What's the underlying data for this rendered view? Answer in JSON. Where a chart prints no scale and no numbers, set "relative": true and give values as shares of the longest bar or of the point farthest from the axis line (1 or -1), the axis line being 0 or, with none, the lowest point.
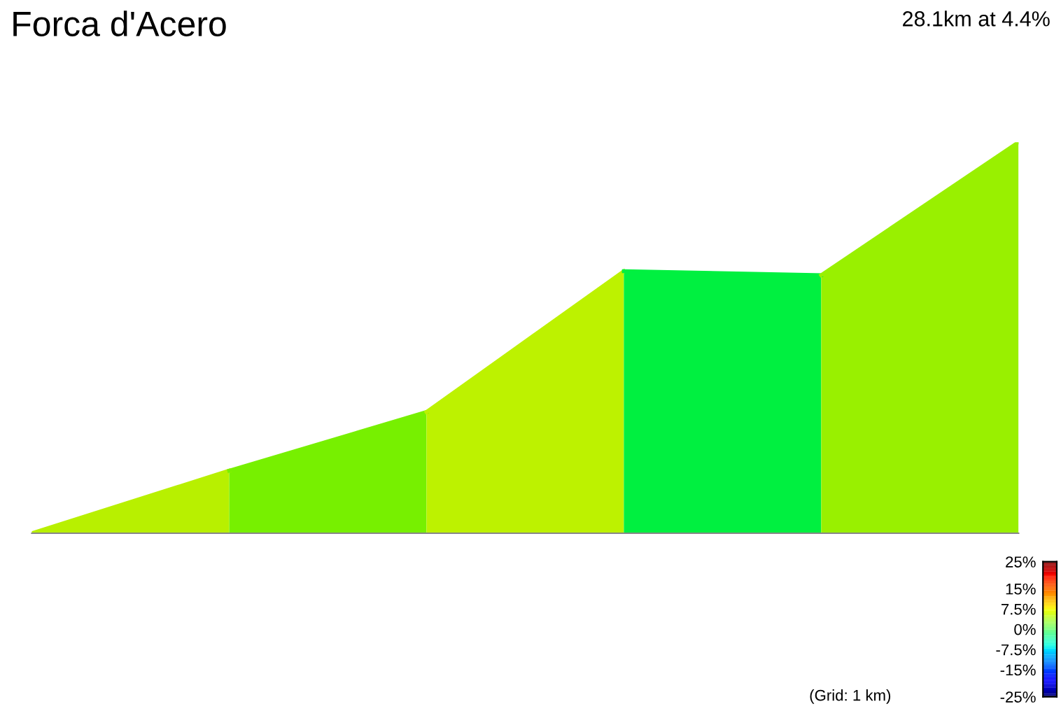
{
  "chart_data": {
    "type": "area",
    "title": "Forca d'Acero",
    "subtitle": "28.1km at 4.4%",
    "relative": true,
    "categories": [
      null,
      null,
      null,
      null,
      null,
      null
    ],
    "series": [
      {
        "color": "#b8f000",
        "values": [
          0,
          0.16,
          null,
          null,
          null,
          null
        ]
      },
      {
        "color": "#77f000",
        "values": [
          null,
          0.16,
          0.31,
          null,
          null,
          null
        ]
      },
      {
        "color": "#bdf200",
        "values": [
          null,
          null,
          0.31,
          0.67,
          null,
          null
        ]
      },
      {
        "color": "#00f040",
        "values": [
          null,
          null,
          null,
          0.67,
          0.66,
          null
        ]
      },
      {
        "color": "#99f000",
        "values": [
          null,
          null,
          null,
          null,
          0.66,
          1
        ]
      }
    ],
    "clim": [
      -25,
      25
    ],
    "cticks": [
      {
        "value": 25,
        "label": "25%"
      },
      {
        "value": 15,
        "label": "15%"
      },
      {
        "value": 7.5,
        "label": "7.5%"
      },
      {
        "value": 0,
        "label": "0%"
      },
      {
        "value": -7.5,
        "label": "-7.5%"
      },
      {
        "value": -15,
        "label": "-15%"
      },
      {
        "value": -25,
        "label": "-25%"
      }
    ],
    "annotations": [
      "(Grid: 1 km)"
    ],
    "grid": false,
    "legend": false
  }
}
